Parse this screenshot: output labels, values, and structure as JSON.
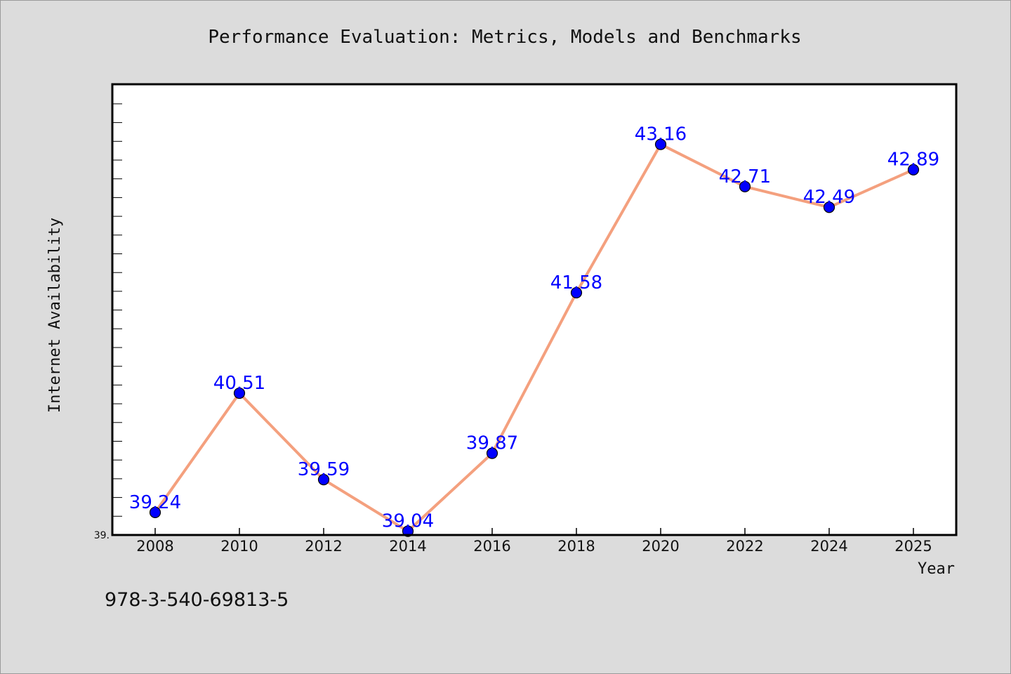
{
  "chart_data": {
    "type": "line",
    "title": "Performance Evaluation: Metrics, Models and Benchmarks",
    "xlabel": "Year",
    "ylabel": "Internet Availability",
    "x": [
      2008,
      2010,
      2012,
      2014,
      2016,
      2018,
      2020,
      2022,
      2024,
      2025
    ],
    "xtick_labels": [
      "2008",
      "2010",
      "2012",
      "2014",
      "2016",
      "2018",
      "2020",
      "2022",
      "2024",
      "2025"
    ],
    "series": [
      {
        "values": [
          39.24,
          40.51,
          39.59,
          39.04,
          39.87,
          41.58,
          43.16,
          42.71,
          42.49,
          42.89
        ],
        "labels": [
          "39.24",
          "40.51",
          "39.59",
          "39.04",
          "39.87",
          "41.58",
          "43.16",
          "42.71",
          "42.49",
          "42.89"
        ],
        "line_color": "#f4a07e",
        "marker_color": "#0000ff"
      }
    ],
    "ytick_labels": [
      "39."
    ],
    "ylim": [
      39.0,
      43.8
    ],
    "grid": false,
    "legend": "none",
    "colors": {
      "line": "#f4a07e",
      "marker": "#0000ff",
      "data_label": "#0000ff",
      "background": "#dcdcdc",
      "plot_background": "#ffffff"
    }
  },
  "annotation": {
    "isbn": "978-3-540-69813-5"
  }
}
